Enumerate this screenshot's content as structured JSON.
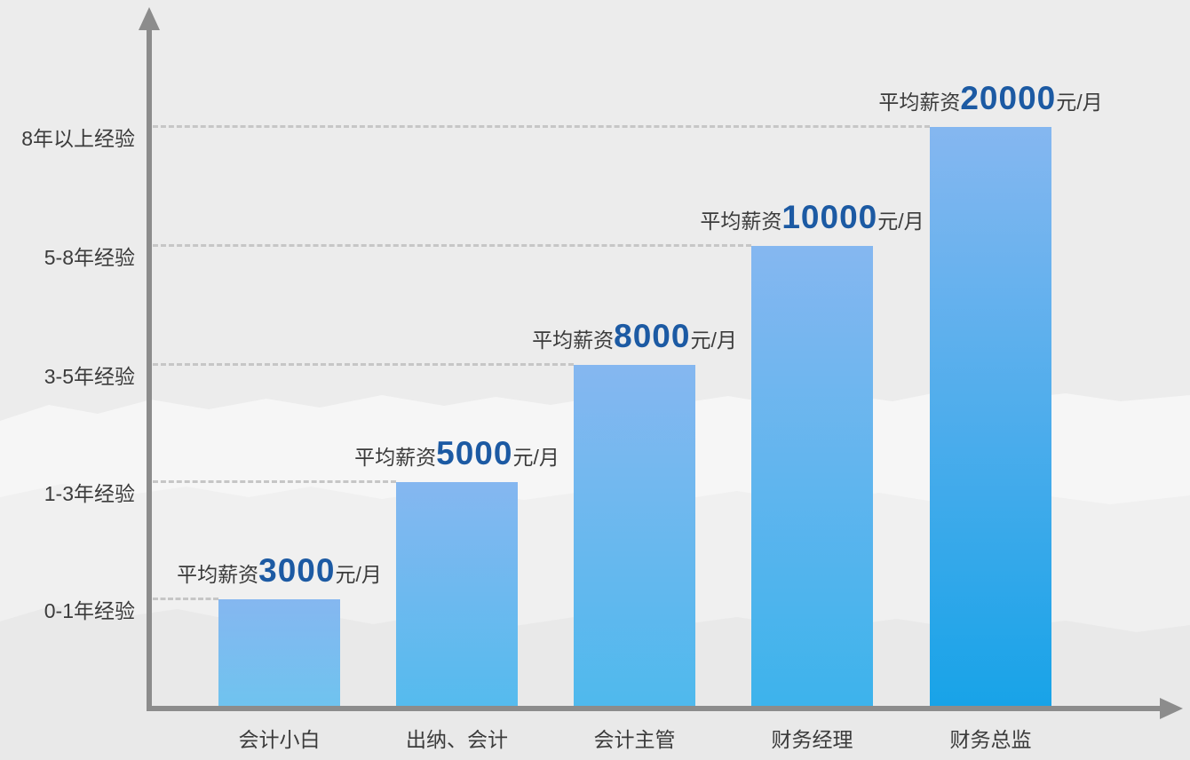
{
  "chart_data": {
    "type": "bar",
    "title": "",
    "categories": [
      "会计小白",
      "出纳、会计",
      "会计主管",
      "财务经理",
      "财务总监"
    ],
    "y_tick_labels": [
      "0-1年经验",
      "1-3年经验",
      "3-5年经验",
      "5-8年经验",
      "8年以上经验"
    ],
    "series": [
      {
        "name": "平均薪资 (元/月)",
        "values": [
          3000,
          5000,
          8000,
          10000,
          20000
        ]
      }
    ],
    "bar_labels": [
      {
        "prefix": "平均薪资",
        "value": "3000",
        "suffix": "元/月"
      },
      {
        "prefix": "平均薪资",
        "value": "5000",
        "suffix": "元/月"
      },
      {
        "prefix": "平均薪资",
        "value": "8000",
        "suffix": "元/月"
      },
      {
        "prefix": "平均薪资",
        "value": "10000",
        "suffix": "元/月"
      },
      {
        "prefix": "平均薪资",
        "value": "20000",
        "suffix": "元/月"
      }
    ],
    "xlabel": "",
    "ylabel": "",
    "legend_position": "none",
    "grid": "horizontal-dashed-per-bar-level",
    "note": "bar tops align with experience-level gridlines (stylized, not value-proportional)"
  },
  "icons": {
    "y_axis_arrow": "up-triangle",
    "x_axis_arrow": "right-triangle"
  },
  "colors": {
    "background": "#ececec",
    "bar_gradient_top": "#85b7f0",
    "bar_gradient_bottoms": [
      "#6fc3ef",
      "#55bbee",
      "#4fb9ed",
      "#3db3ec",
      "#18a3e8"
    ],
    "number_blue": "#1c5aa3",
    "text_dark": "#3b3b3b",
    "axis_gray": "#8c8c8c",
    "gridline_gray": "#c6c6c6"
  }
}
